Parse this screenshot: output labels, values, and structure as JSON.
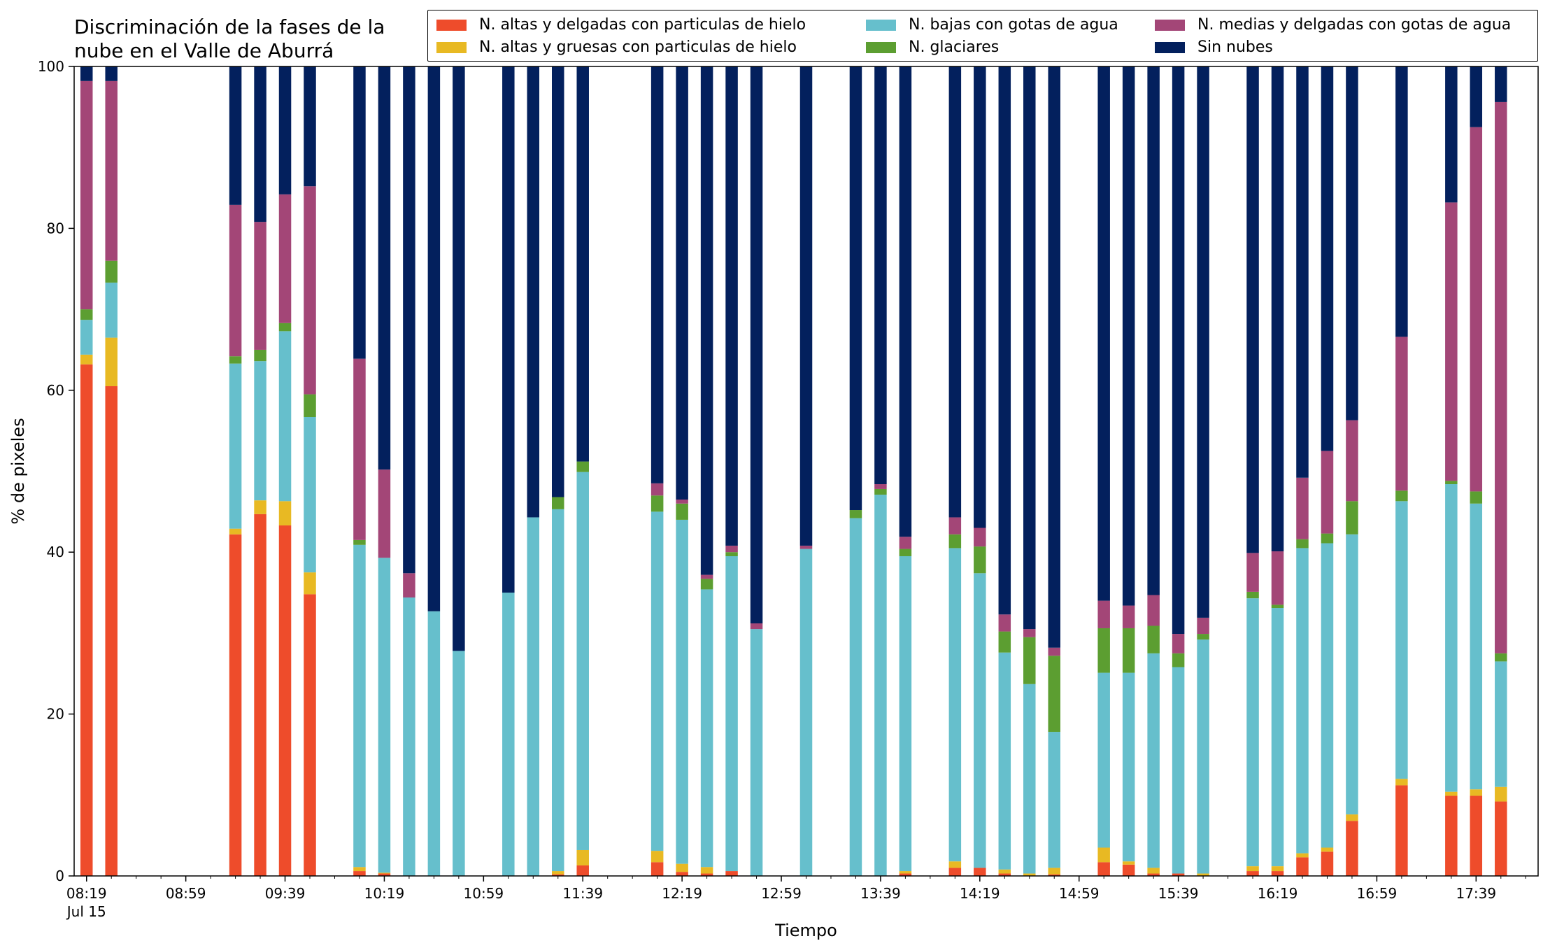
{
  "chart_data": {
    "type": "bar",
    "stacked": true,
    "title": "Discriminación de la fases de la nube en el Valle de Aburrá",
    "title_lines": [
      "Discriminación de la fases de la",
      "nube en el Valle de Aburrá"
    ],
    "xlabel": "Tiempo",
    "ylabel": "% de pixeles",
    "ylim": [
      0,
      100
    ],
    "yticks": [
      "0",
      "20",
      "40",
      "60",
      "80",
      "100"
    ],
    "xlim_minutes_after_0819": [
      -5,
      585
    ],
    "xtick_labels": [
      "08:19",
      "08:59",
      "09:39",
      "10:19",
      "10:59",
      "11:39",
      "12:19",
      "12:59",
      "13:39",
      "14:19",
      "14:59",
      "15:39",
      "16:19",
      "16:59",
      "17:39"
    ],
    "xtick_sublabel": "Jul 15",
    "legend_position": "top-right",
    "grid": false,
    "series": [
      {
        "name": "N. altas y delgadas con particulas de hielo",
        "color": "#ee4c2b"
      },
      {
        "name": "N. altas y gruesas con particulas de hielo",
        "color": "#e8b923"
      },
      {
        "name": "N. bajas con gotas de agua",
        "color": "#66bfcc"
      },
      {
        "name": "N. glaciares",
        "color": "#5c9e31"
      },
      {
        "name": "N. medias y delgadas con gotas de agua",
        "color": "#a34677"
      },
      {
        "name": "Sin nubes",
        "color": "#03205d"
      }
    ],
    "bars": [
      {
        "time": "08:19",
        "values": [
          63.2,
          1.2,
          4.3,
          1.3,
          28.2,
          1.8
        ]
      },
      {
        "time": "08:29",
        "values": [
          60.5,
          6.0,
          6.8,
          2.7,
          22.2,
          1.8
        ]
      },
      {
        "time": "09:19",
        "values": [
          42.2,
          0.7,
          20.4,
          0.9,
          18.7,
          17.1
        ]
      },
      {
        "time": "09:29",
        "values": [
          44.7,
          1.7,
          17.2,
          1.4,
          15.8,
          19.2
        ]
      },
      {
        "time": "09:39",
        "values": [
          43.3,
          3.0,
          21.0,
          1.0,
          15.9,
          15.8
        ]
      },
      {
        "time": "09:49",
        "values": [
          34.8,
          2.7,
          19.2,
          2.8,
          25.7,
          14.8
        ]
      },
      {
        "time": "10:09",
        "values": [
          0.6,
          0.5,
          39.8,
          0.6,
          22.4,
          36.1
        ]
      },
      {
        "time": "10:19",
        "values": [
          0.3,
          0.1,
          38.9,
          0.0,
          10.9,
          49.8
        ]
      },
      {
        "time": "10:29",
        "values": [
          0.0,
          0.0,
          34.4,
          0.0,
          3.0,
          62.6
        ]
      },
      {
        "time": "10:39",
        "values": [
          0.0,
          0.0,
          32.7,
          0.0,
          0.0,
          67.3
        ]
      },
      {
        "time": "10:49",
        "values": [
          0.0,
          0.0,
          27.8,
          0.0,
          0.0,
          72.2
        ]
      },
      {
        "time": "11:09",
        "values": [
          0.0,
          0.0,
          35.0,
          0.0,
          0.0,
          65.0
        ]
      },
      {
        "time": "11:19",
        "values": [
          0.0,
          0.0,
          44.3,
          0.0,
          0.0,
          55.7
        ]
      },
      {
        "time": "11:29",
        "values": [
          0.2,
          0.4,
          44.7,
          1.5,
          0.0,
          53.2
        ]
      },
      {
        "time": "11:39",
        "values": [
          1.3,
          1.9,
          46.7,
          1.3,
          0.0,
          48.8
        ]
      },
      {
        "time": "12:09",
        "values": [
          1.7,
          1.4,
          41.9,
          2.0,
          1.5,
          51.5
        ]
      },
      {
        "time": "12:19",
        "values": [
          0.5,
          1.0,
          42.5,
          2.0,
          0.5,
          53.5
        ]
      },
      {
        "time": "12:29",
        "values": [
          0.3,
          0.8,
          34.3,
          1.3,
          0.5,
          62.8
        ]
      },
      {
        "time": "12:39",
        "values": [
          0.6,
          0.0,
          38.9,
          0.5,
          0.8,
          59.2
        ]
      },
      {
        "time": "12:49",
        "values": [
          0.0,
          0.0,
          30.5,
          0.0,
          0.7,
          68.8
        ]
      },
      {
        "time": "13:09",
        "values": [
          0.0,
          0.0,
          40.4,
          0.0,
          0.4,
          59.2
        ]
      },
      {
        "time": "13:29",
        "values": [
          0.0,
          0.0,
          44.2,
          1.0,
          0.0,
          54.8
        ]
      },
      {
        "time": "13:39",
        "values": [
          0.0,
          0.0,
          47.1,
          0.7,
          0.6,
          51.6
        ]
      },
      {
        "time": "13:49",
        "values": [
          0.3,
          0.3,
          38.9,
          0.9,
          1.5,
          58.1
        ]
      },
      {
        "time": "14:09",
        "values": [
          1.0,
          0.8,
          38.7,
          1.7,
          2.1,
          55.7
        ]
      },
      {
        "time": "14:19",
        "values": [
          1.0,
          0.0,
          36.4,
          3.3,
          2.3,
          57.0
        ]
      },
      {
        "time": "14:29",
        "values": [
          0.3,
          0.5,
          26.8,
          2.6,
          2.1,
          67.7
        ]
      },
      {
        "time": "14:39",
        "values": [
          0.0,
          0.3,
          23.4,
          5.8,
          1.0,
          69.5
        ]
      },
      {
        "time": "14:49",
        "values": [
          0.2,
          0.8,
          16.8,
          9.4,
          1.0,
          71.8
        ]
      },
      {
        "time": "15:09",
        "values": [
          1.7,
          1.8,
          21.6,
          5.5,
          3.4,
          66.0
        ]
      },
      {
        "time": "15:19",
        "values": [
          1.4,
          0.4,
          23.3,
          5.5,
          2.8,
          66.6
        ]
      },
      {
        "time": "15:29",
        "values": [
          0.3,
          0.7,
          26.5,
          3.4,
          3.8,
          65.3
        ]
      },
      {
        "time": "15:39",
        "values": [
          0.3,
          0.0,
          25.5,
          1.7,
          2.4,
          70.1
        ]
      },
      {
        "time": "15:49",
        "values": [
          0.0,
          0.3,
          28.9,
          0.7,
          2.0,
          68.1
        ]
      },
      {
        "time": "16:09",
        "values": [
          0.6,
          0.6,
          33.1,
          0.8,
          4.8,
          60.1
        ]
      },
      {
        "time": "16:19",
        "values": [
          0.6,
          0.6,
          31.9,
          0.4,
          6.6,
          59.9
        ]
      },
      {
        "time": "16:29",
        "values": [
          2.3,
          0.5,
          37.7,
          1.1,
          7.6,
          50.8
        ]
      },
      {
        "time": "16:39",
        "values": [
          3.0,
          0.5,
          37.6,
          1.2,
          10.2,
          47.5
        ]
      },
      {
        "time": "16:49",
        "values": [
          6.8,
          0.8,
          34.6,
          4.1,
          10.0,
          43.7
        ]
      },
      {
        "time": "17:09",
        "values": [
          11.2,
          0.8,
          34.3,
          1.3,
          19.0,
          33.4
        ]
      },
      {
        "time": "17:29",
        "values": [
          9.9,
          0.5,
          38.0,
          0.4,
          34.4,
          16.8
        ]
      },
      {
        "time": "17:39",
        "values": [
          9.9,
          0.8,
          35.3,
          1.5,
          45.0,
          7.5
        ]
      },
      {
        "time": "17:49",
        "values": [
          9.2,
          1.8,
          15.5,
          1.0,
          68.1,
          4.4
        ]
      }
    ]
  }
}
